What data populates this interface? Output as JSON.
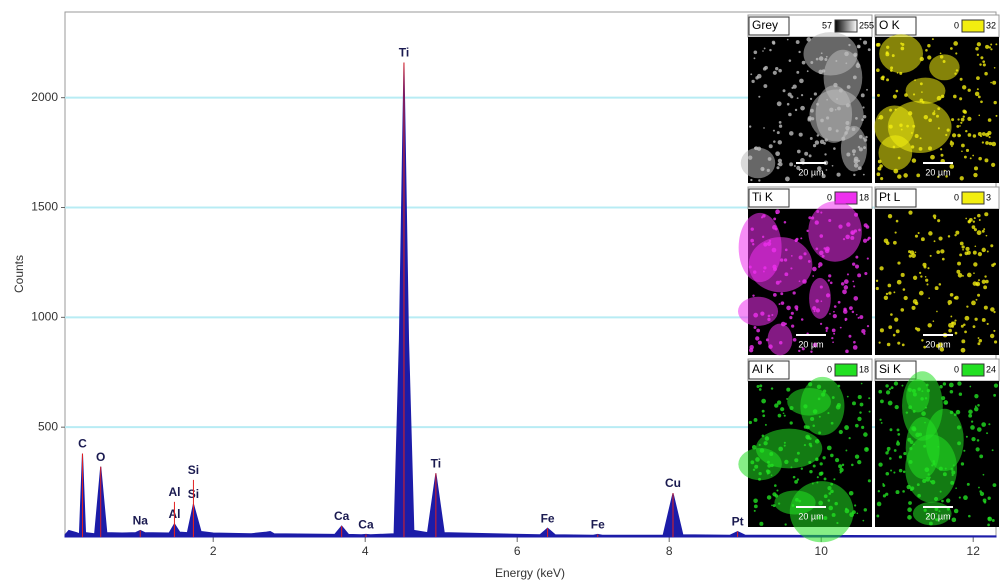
{
  "chart_data": {
    "type": "area",
    "x_label": "Energy (keV)",
    "y_label": "Counts",
    "x": [
      0.05,
      0.1,
      0.2,
      0.24,
      0.28,
      0.32,
      0.44,
      0.52,
      0.6,
      0.8,
      0.98,
      1.04,
      1.1,
      1.42,
      1.49,
      1.56,
      1.66,
      1.74,
      1.84,
      2.0,
      2.5,
      2.7,
      2.75,
      2.8,
      3.6,
      3.69,
      3.78,
      3.95,
      4.01,
      4.07,
      4.38,
      4.45,
      4.51,
      4.57,
      4.64,
      4.82,
      4.93,
      5.04,
      6.3,
      6.4,
      6.5,
      7.0,
      7.06,
      7.12,
      7.92,
      8.05,
      8.18,
      8.8,
      8.9,
      9.0,
      12.3
    ],
    "series": [
      {
        "color": "#1c1ca8",
        "values": [
          10,
          30,
          20,
          15,
          380,
          20,
          15,
          320,
          20,
          18,
          20,
          30,
          20,
          18,
          60,
          22,
          20,
          150,
          25,
          18,
          15,
          22,
          25,
          15,
          12,
          50,
          12,
          10,
          12,
          10,
          15,
          900,
          2160,
          900,
          30,
          20,
          290,
          20,
          10,
          40,
          10,
          8,
          12,
          8,
          8,
          200,
          10,
          8,
          25,
          8,
          5
        ]
      }
    ],
    "xlim": [
      0.05,
      12.3
    ],
    "ylim": [
      0,
      2390
    ],
    "xticks": [
      2,
      4,
      6,
      8,
      10,
      12
    ],
    "yticks": [
      500,
      1000,
      1500,
      2000
    ],
    "grid": true,
    "annotations": [
      {
        "text": "C",
        "x": 0.28,
        "y": 380
      },
      {
        "text": "O",
        "x": 0.52,
        "y": 320
      },
      {
        "text": "Na",
        "x": 1.04,
        "y": 30
      },
      {
        "text": "Al",
        "x": 1.49,
        "y": 60
      },
      {
        "text": "Al",
        "x": 1.49,
        "y": 160
      },
      {
        "text": "Si",
        "x": 1.74,
        "y": 150
      },
      {
        "text": "Si",
        "x": 1.74,
        "y": 260
      },
      {
        "text": "Ca",
        "x": 3.69,
        "y": 50
      },
      {
        "text": "Ca",
        "x": 4.01,
        "y": 12
      },
      {
        "text": "Ti",
        "x": 4.51,
        "y": 2160
      },
      {
        "text": "Ti",
        "x": 4.93,
        "y": 290
      },
      {
        "text": "Fe",
        "x": 6.4,
        "y": 40
      },
      {
        "text": "Fe",
        "x": 7.06,
        "y": 12
      },
      {
        "text": "Cu",
        "x": 8.05,
        "y": 200
      },
      {
        "text": "Pt",
        "x": 8.9,
        "y": 25
      }
    ]
  },
  "element_maps": [
    {
      "label": "Grey",
      "min": 57,
      "max": 255,
      "color": "#ffffff",
      "scale_bar": "20 µm"
    },
    {
      "label": "O K",
      "min": 0,
      "max": 32,
      "color": "#f2ee10",
      "scale_bar": "20 µm"
    },
    {
      "label": "Ti K",
      "min": 0,
      "max": 18,
      "color": "#ee30ee",
      "scale_bar": "20 µm"
    },
    {
      "label": "Pt L",
      "min": 0,
      "max": 3,
      "color": "#f2ee10",
      "scale_bar": "20 µm"
    },
    {
      "label": "Al K",
      "min": 0,
      "max": 18,
      "color": "#22e022",
      "scale_bar": "20 µm"
    },
    {
      "label": "Si K",
      "min": 0,
      "max": 24,
      "color": "#22e022",
      "scale_bar": "20 µm"
    }
  ]
}
